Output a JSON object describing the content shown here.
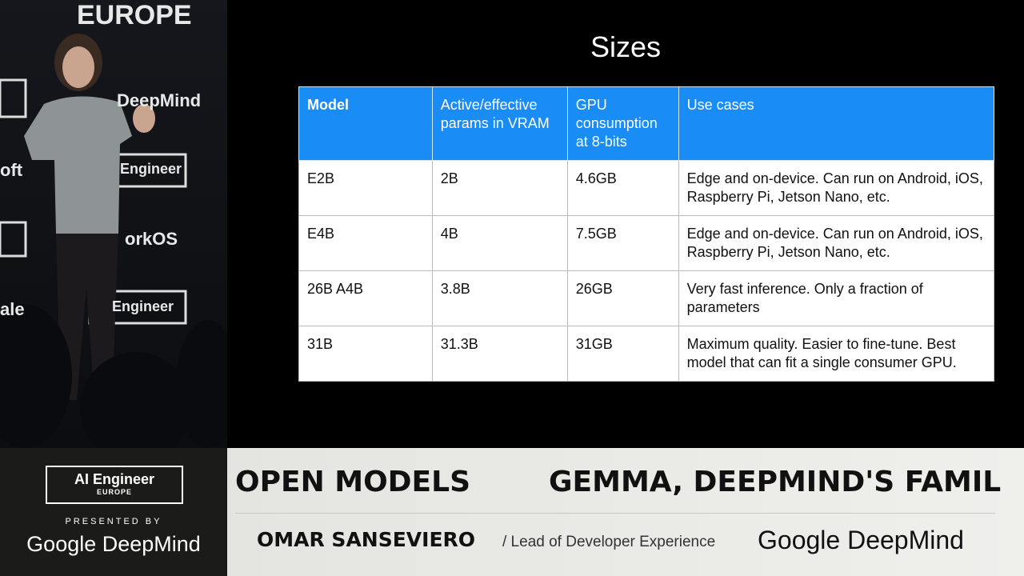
{
  "stage_backdrop": [
    "EUROPE",
    "DeepMind",
    "Engineer",
    "orkOS",
    "Engineer",
    "oft",
    "ale"
  ],
  "slide": {
    "title": "Sizes",
    "table": {
      "header": [
        "Model",
        "Active/effective params in VRAM",
        "GPU consumption at 8-bits",
        "Use cases"
      ],
      "rows": [
        [
          "E2B",
          "2B",
          "4.6GB",
          "Edge and on-device. Can run on Android, iOS, Raspberry Pi, Jetson Nano, etc."
        ],
        [
          "E4B",
          "4B",
          "7.5GB",
          "Edge and on-device. Can run on Android, iOS, Raspberry Pi, Jetson Nano, etc."
        ],
        [
          "26B A4B",
          "3.8B",
          "26GB",
          "Very fast inference. Only a fraction of parameters"
        ],
        [
          "31B",
          "31.3B",
          "31GB",
          "Maximum quality. Easier to fine-tune. Best model that can fit a single consumer GPU."
        ]
      ]
    }
  },
  "lower_third": {
    "event": "AI Engineer",
    "event_region": "EUROPE",
    "presented_by": "PRESENTED BY",
    "sponsor": "Google DeepMind",
    "track": "OPEN MODELS",
    "talk": "GEMMA, DEEPMIND'S FAMIL",
    "speaker": "OMAR SANSEVIERO",
    "role": "/ Lead of Developer Experience",
    "company": "Google DeepMind"
  }
}
